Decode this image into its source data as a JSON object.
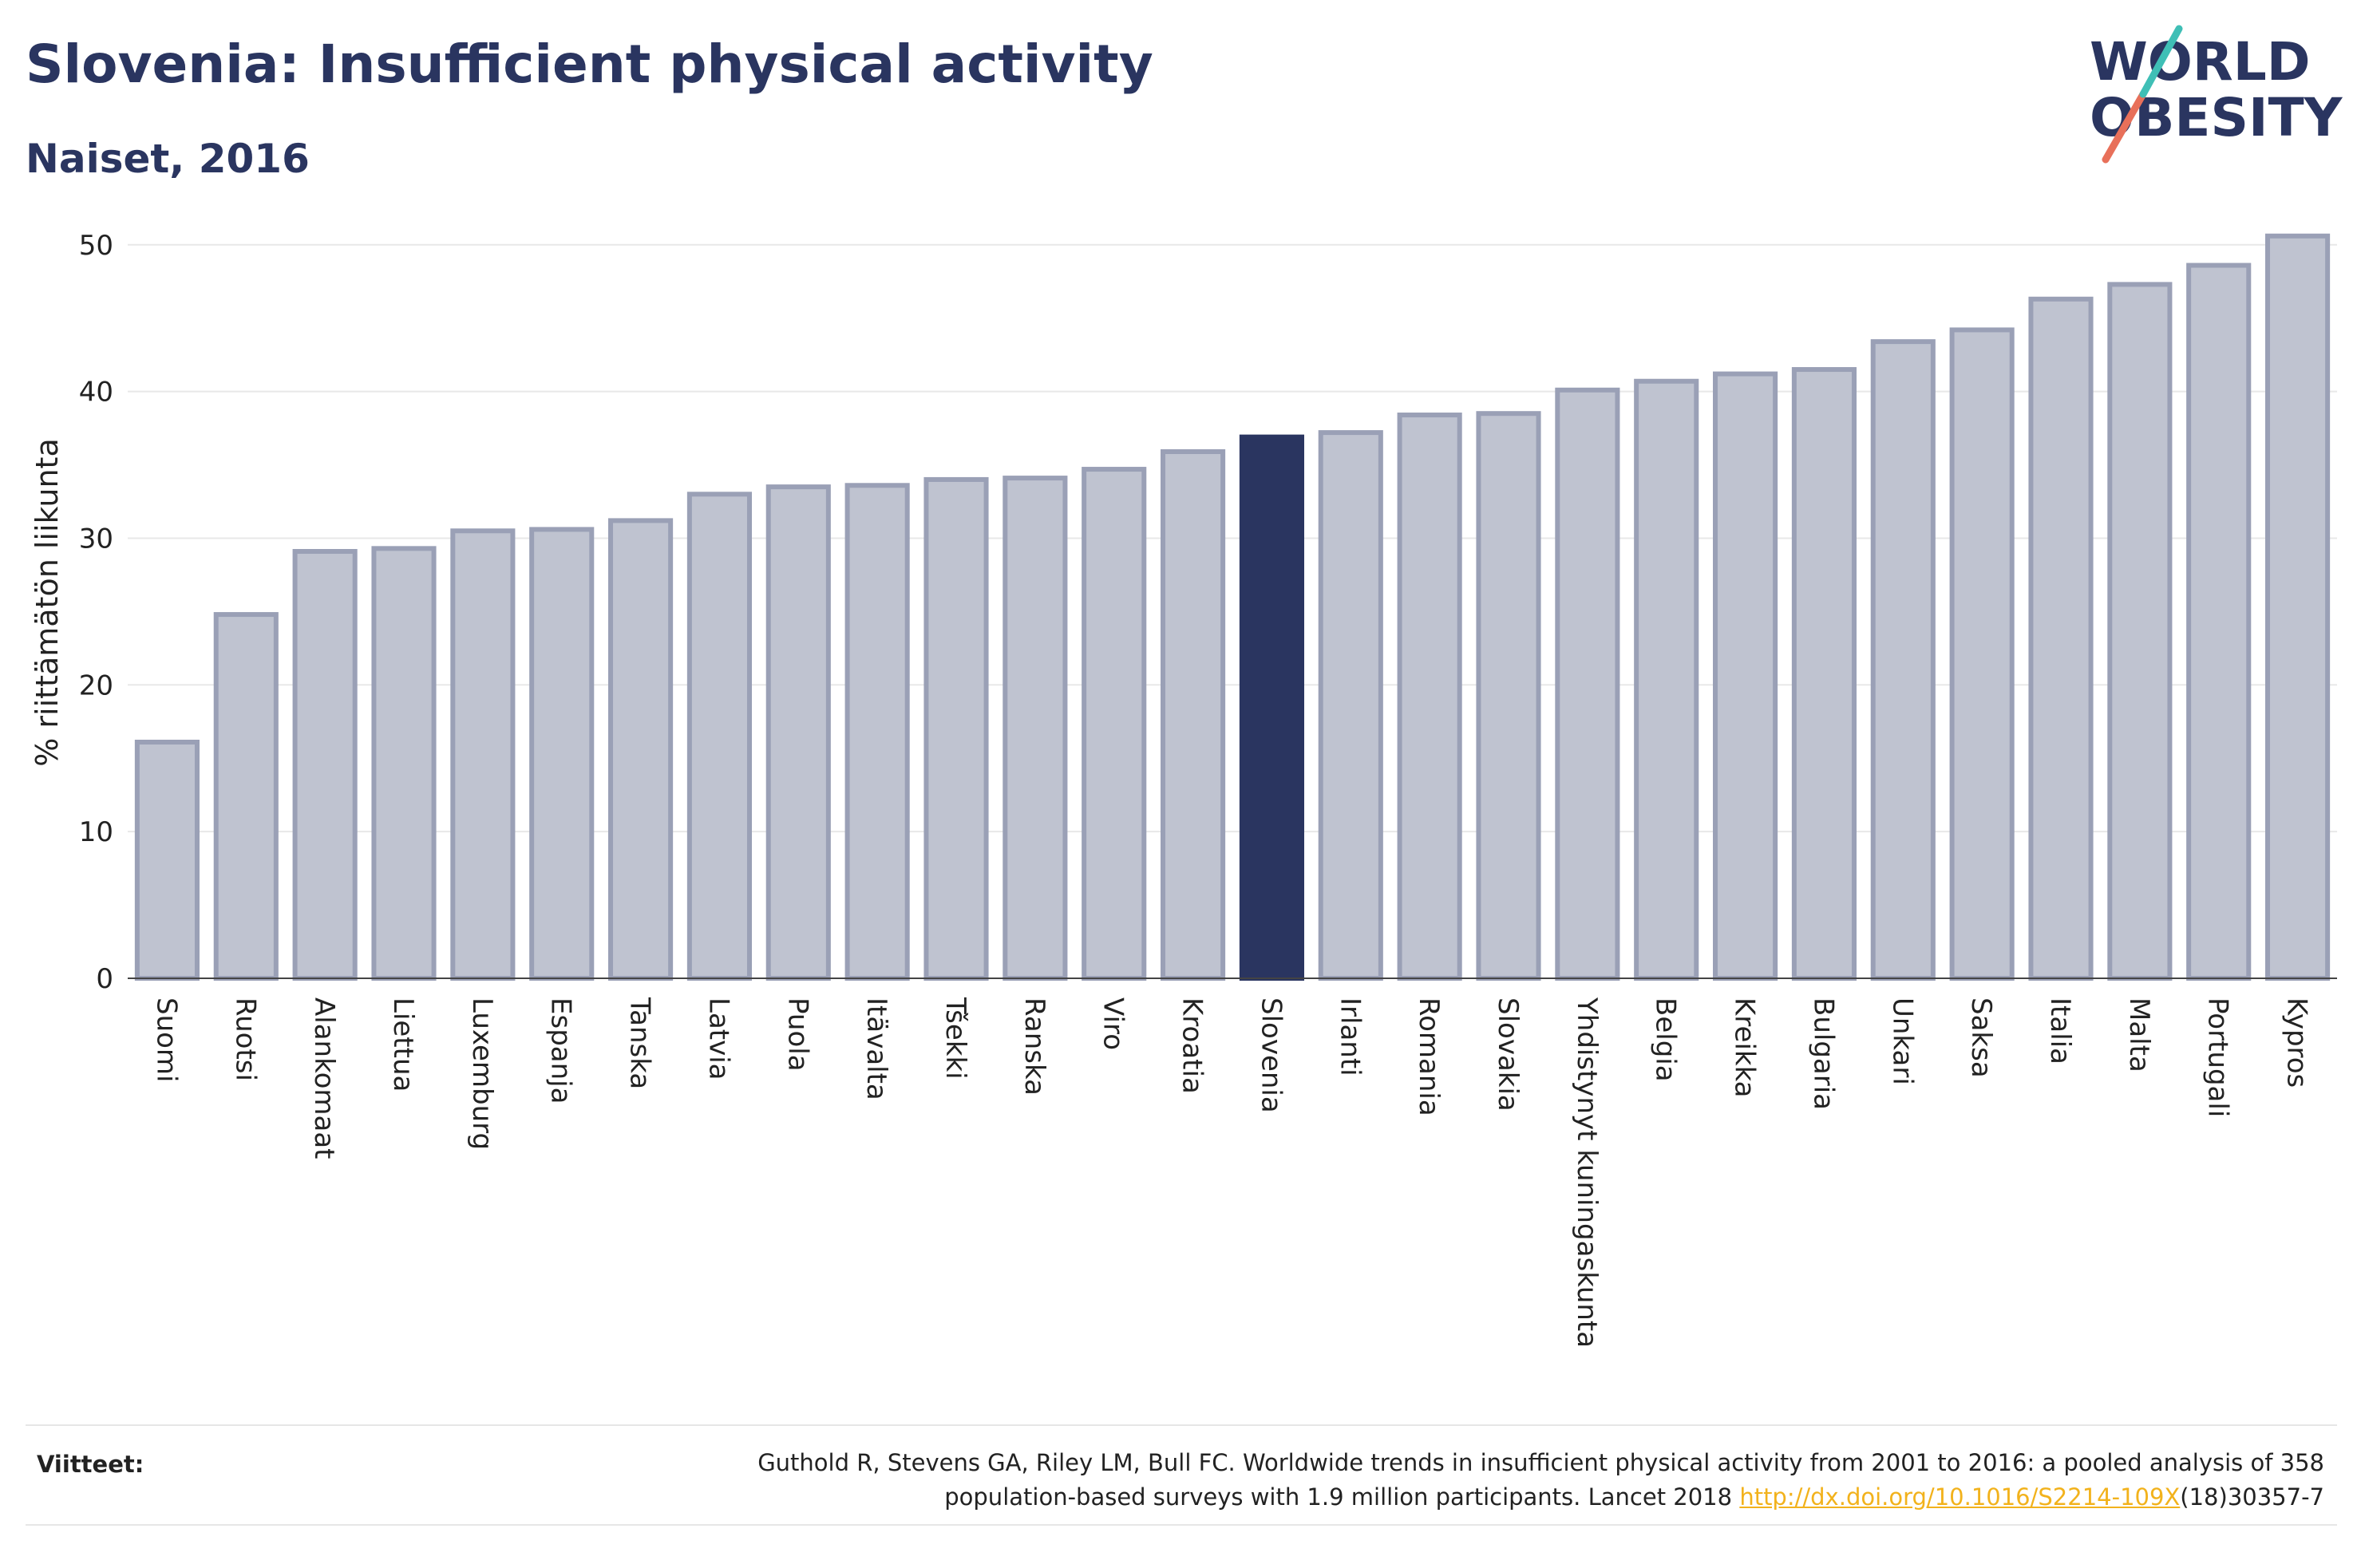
{
  "header": {
    "title": "Slovenia: Insufficient physical activity",
    "subtitle": "Naiset, 2016"
  },
  "logo": {
    "line1": "WORLD",
    "line2": "OBESITY"
  },
  "footer": {
    "label": "Viitteet:",
    "text_line1": "Guthold R, Stevens GA, Riley LM, Bull FC. Worldwide trends in insufficient physical activity from 2001 to 2016: a pooled analysis of 358",
    "text_line2_before": "population-based surveys with 1.9 million participants. Lancet 2018 ",
    "link": "http://dx.doi.org/10.1016/S2214-109X",
    "text_line2_after": "(18)30357-7"
  },
  "colors": {
    "bar": "#bfc3d0",
    "bar_stroke": "#9aa0b6",
    "highlight": "#2a3560",
    "grid": "#e8e8e8",
    "link": "#f2b21c"
  },
  "chart_data": {
    "type": "bar",
    "ylabel": "% riittämätön liikunta",
    "ylim": [
      0,
      52
    ],
    "yticks": [
      0,
      10,
      20,
      30,
      40,
      50
    ],
    "grid": true,
    "highlight": "Slovenia",
    "categories": [
      "Suomi",
      "Ruotsi",
      "Alankomaat",
      "Liettua",
      "Luxemburg",
      "Espanja",
      "Tanska",
      "Latvia",
      "Puola",
      "Itävalta",
      "Tšekki",
      "Ranska",
      "Viro",
      "Kroatia",
      "Slovenia",
      "Irlanti",
      "Romania",
      "Slovakia",
      "Yhdistynyt kuningaskunta",
      "Belgia",
      "Kreikka",
      "Bulgaria",
      "Unkari",
      "Saksa",
      "Italia",
      "Malta",
      "Portugali",
      "Kypros"
    ],
    "values": [
      16.1,
      24.8,
      29.1,
      29.3,
      30.5,
      30.6,
      31.2,
      33.0,
      33.5,
      33.6,
      34.0,
      34.1,
      34.7,
      35.9,
      36.9,
      37.2,
      38.4,
      38.5,
      40.1,
      40.7,
      41.2,
      41.5,
      43.4,
      44.2,
      46.3,
      47.3,
      48.6,
      50.6
    ]
  }
}
